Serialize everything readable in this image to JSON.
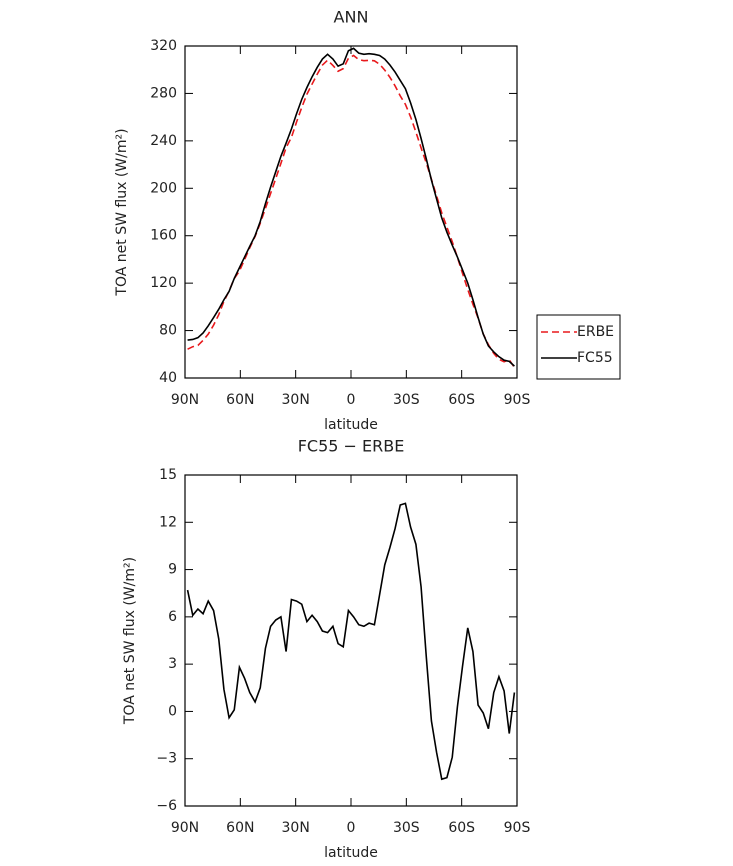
{
  "chart_data": [
    {
      "type": "line",
      "title": "ANN",
      "xlabel": "latitude",
      "ylabel": "TOA net SW flux (W/m²)",
      "x": [
        88.6,
        85.8,
        83.0,
        80.2,
        77.4,
        74.5,
        71.7,
        68.9,
        66.1,
        63.3,
        60.5,
        57.7,
        54.9,
        52.0,
        49.2,
        46.4,
        43.6,
        40.8,
        38.0,
        35.2,
        32.3,
        29.5,
        26.7,
        23.9,
        21.1,
        18.3,
        15.5,
        12.7,
        9.8,
        7.0,
        4.2,
        1.4,
        -1.4,
        -4.2,
        -7.0,
        -9.8,
        -12.7,
        -15.5,
        -18.3,
        -21.1,
        -23.9,
        -26.7,
        -29.5,
        -32.3,
        -35.2,
        -38.0,
        -40.8,
        -43.6,
        -46.4,
        -49.2,
        -52.0,
        -54.9,
        -57.7,
        -60.5,
        -63.3,
        -66.1,
        -68.9,
        -71.7,
        -74.5,
        -77.4,
        -80.2,
        -83.0,
        -85.8,
        -88.6
      ],
      "series": [
        {
          "name": "ERBE",
          "color": "#e8191c",
          "style": "dashed",
          "values": [
            64.3,
            66.4,
            67.5,
            71.8,
            77.0,
            84.6,
            93.4,
            104.6,
            113.4,
            123.9,
            130.2,
            139.9,
            149.8,
            159.4,
            170.5,
            183.0,
            195.6,
            208.2,
            221.0,
            234.2,
            242.9,
            256.0,
            268.2,
            279.3,
            287.9,
            296.3,
            303.9,
            308.0,
            303.6,
            298.7,
            300.9,
            309.6,
            312.0,
            308.5,
            307.6,
            307.9,
            307.5,
            304.6,
            299.7,
            293.6,
            286.4,
            277.9,
            270.8,
            260.3,
            247.4,
            234.1,
            221.5,
            207.6,
            193.6,
            179.3,
            167.2,
            154.9,
            141.7,
            128.1,
            114.7,
            102.2,
            90.6,
            77.1,
            68.1,
            60.8,
            55.8,
            53.7,
            55.4,
            48.8
          ]
        },
        {
          "name": "FC55",
          "color": "#000000",
          "style": "solid",
          "values": [
            72,
            72.5,
            74,
            78,
            84,
            91,
            98,
            106,
            113,
            124,
            133,
            142,
            151,
            160,
            172,
            187,
            201,
            214,
            227,
            238,
            250,
            263,
            275,
            285,
            294,
            302,
            309,
            313,
            309,
            303,
            305,
            316,
            318,
            314,
            313,
            313.5,
            313,
            312,
            309,
            304,
            298,
            291,
            284,
            272,
            258,
            242,
            225,
            207,
            191,
            175,
            163,
            152,
            142,
            131,
            120,
            106,
            91,
            77,
            67,
            62,
            58,
            55,
            54,
            50
          ]
        }
      ],
      "xlim": [
        90,
        -90
      ],
      "xticks": [
        {
          "value": 90,
          "label": "90N"
        },
        {
          "value": 60,
          "label": "60N"
        },
        {
          "value": 30,
          "label": "30N"
        },
        0,
        {
          "value": -30,
          "label": "30S"
        },
        {
          "value": -60,
          "label": "60S"
        },
        {
          "value": -90,
          "label": "90S"
        }
      ],
      "ylim": [
        40,
        320
      ],
      "yticks": [
        40,
        80,
        120,
        160,
        200,
        240,
        280,
        320
      ],
      "legend": "outside right"
    },
    {
      "type": "line",
      "title": "FC55 − ERBE",
      "xlabel": "latitude",
      "ylabel": "TOA net SW flux (W/m²)",
      "x": [
        88.6,
        85.8,
        83.0,
        80.2,
        77.4,
        74.5,
        71.7,
        68.9,
        66.1,
        63.3,
        60.5,
        57.7,
        54.9,
        52.0,
        49.2,
        46.4,
        43.6,
        40.8,
        38.0,
        35.2,
        32.3,
        29.5,
        26.7,
        23.9,
        21.1,
        18.3,
        15.5,
        12.7,
        9.8,
        7.0,
        4.2,
        1.4,
        -1.4,
        -4.2,
        -7.0,
        -9.8,
        -12.7,
        -15.5,
        -18.3,
        -21.1,
        -23.9,
        -26.7,
        -29.5,
        -32.3,
        -35.2,
        -38.0,
        -40.8,
        -43.6,
        -46.4,
        -49.2,
        -52.0,
        -54.9,
        -57.7,
        -60.5,
        -63.3,
        -66.1,
        -68.9,
        -71.7,
        -74.5,
        -77.4,
        -80.2,
        -83.0,
        -85.8,
        -88.6
      ],
      "color": "#000000",
      "style": "solid",
      "values": [
        7.7,
        6.1,
        6.5,
        6.2,
        7.0,
        6.4,
        4.6,
        1.4,
        -0.4,
        0.1,
        2.8,
        2.1,
        1.2,
        0.6,
        1.5,
        4.0,
        5.4,
        5.8,
        6.0,
        3.8,
        7.1,
        7.0,
        6.8,
        5.7,
        6.1,
        5.7,
        5.1,
        5.0,
        5.4,
        4.3,
        4.1,
        6.4,
        6.0,
        5.5,
        5.4,
        5.6,
        5.5,
        7.4,
        9.3,
        10.4,
        11.6,
        13.1,
        13.2,
        11.7,
        10.6,
        7.9,
        3.5,
        -0.6,
        -2.6,
        -4.3,
        -4.2,
        -2.9,
        0.3,
        2.9,
        5.3,
        3.8,
        0.4,
        -0.1,
        -1.1,
        1.2,
        2.2,
        1.3,
        -1.4,
        1.2
      ],
      "xlim": [
        90,
        -90
      ],
      "xticks": [
        {
          "value": 90,
          "label": "90N"
        },
        {
          "value": 60,
          "label": "60N"
        },
        {
          "value": 30,
          "label": "30N"
        },
        0,
        {
          "value": -30,
          "label": "30S"
        },
        {
          "value": -60,
          "label": "60S"
        },
        {
          "value": -90,
          "label": "90S"
        }
      ],
      "ylim": [
        -6,
        15
      ],
      "yticks": [
        {
          "value": -6,
          "label": "−6"
        },
        {
          "value": -3,
          "label": "−3"
        },
        0,
        3,
        6,
        9,
        12,
        15
      ]
    }
  ]
}
